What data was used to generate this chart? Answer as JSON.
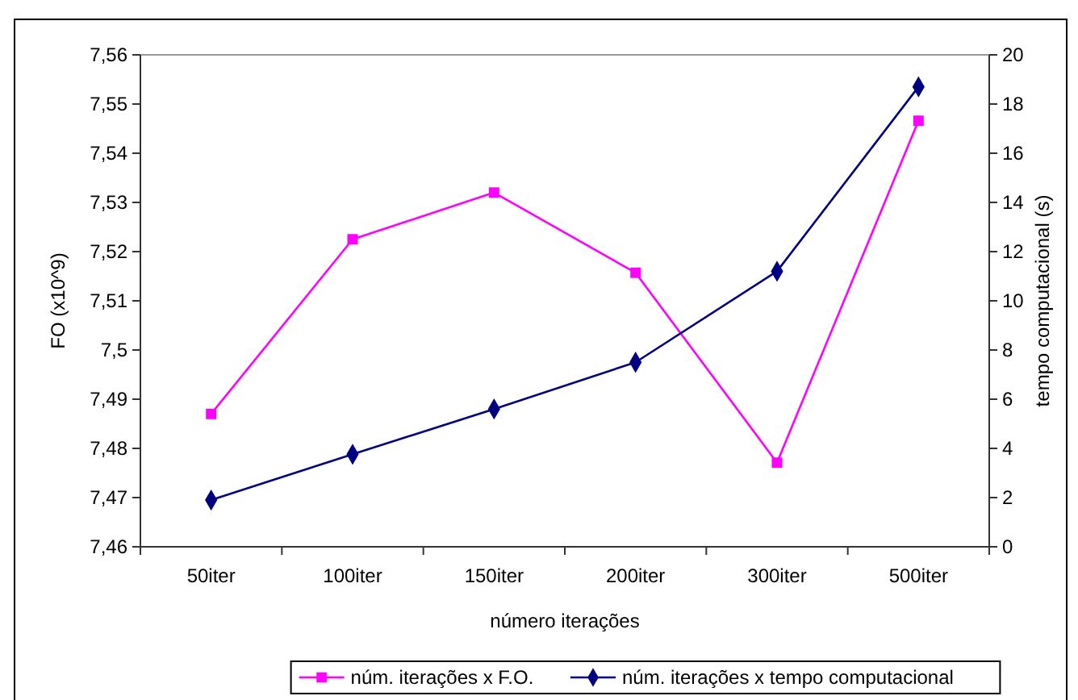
{
  "chart_data": {
    "type": "line",
    "xlabel": "número iterações",
    "ylabel": "FO (x10^9)",
    "y2label": "tempo computacional (s)",
    "categories": [
      "50iter",
      "100iter",
      "150iter",
      "200iter",
      "300iter",
      "500iter"
    ],
    "series": [
      {
        "name": "núm. iterações x F.O.",
        "color": "#ff00ff",
        "marker": "square",
        "values": [
          7.487,
          7.5225,
          7.532,
          7.5157,
          7.4771,
          7.5466
        ]
      },
      {
        "name": "núm. iterações x tempo computacional",
        "color": "#000080",
        "marker": "diamond",
        "axis": "y2",
        "values": [
          1.9,
          3.76,
          5.6,
          7.5,
          11.2,
          18.7
        ]
      }
    ],
    "ylim": [
      7.46,
      7.56
    ],
    "yticks": [
      {
        "value": 7.46,
        "label": "7,46"
      },
      {
        "value": 7.47,
        "label": "7,47"
      },
      {
        "value": 7.48,
        "label": "7,48"
      },
      {
        "value": 7.49,
        "label": "7,49"
      },
      {
        "value": 7.5,
        "label": "7,5"
      },
      {
        "value": 7.51,
        "label": "7,51"
      },
      {
        "value": 7.52,
        "label": "7,52"
      },
      {
        "value": 7.53,
        "label": "7,53"
      },
      {
        "value": 7.54,
        "label": "7,54"
      },
      {
        "value": 7.55,
        "label": "7,55"
      },
      {
        "value": 7.56,
        "label": "7,56"
      }
    ],
    "y2lim": [
      0,
      20
    ],
    "y2ticks": [
      0,
      2,
      4,
      6,
      8,
      10,
      12,
      14,
      16,
      18,
      20
    ],
    "legend": "bottom",
    "line_style": "solid"
  }
}
